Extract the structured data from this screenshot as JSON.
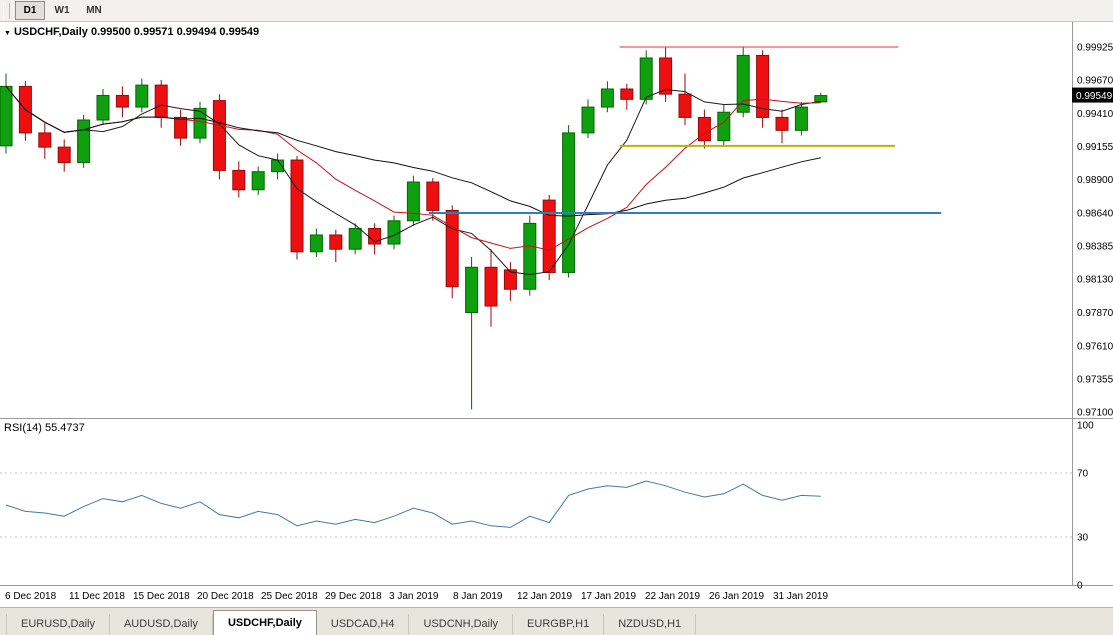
{
  "toolbar": {
    "buttons": [
      {
        "label": "D1",
        "active": true
      },
      {
        "label": "W1",
        "active": false
      },
      {
        "label": "MN",
        "active": false
      }
    ]
  },
  "chart": {
    "title": "USDCHF,Daily 0.99500 0.99571 0.99494 0.99549",
    "symbol": "USDCHF",
    "period": "Daily",
    "current_price": "0.99549",
    "price_axis_labels": [
      "0.99925",
      "0.99670",
      "0.99410",
      "0.99155",
      "0.98900",
      "0.98640",
      "0.98385",
      "0.98130",
      "0.97870",
      "0.97610",
      "0.97355",
      "0.97100"
    ],
    "date_labels": [
      "6 Dec 2018",
      "11 Dec 2018",
      "15 Dec 2018",
      "20 Dec 2018",
      "25 Dec 2018",
      "29 Dec 2018",
      "3 Jan 2019",
      "8 Jan 2019",
      "12 Jan 2019",
      "17 Jan 2019",
      "22 Jan 2019",
      "26 Jan 2019",
      "31 Jan 2019"
    ]
  },
  "rsi": {
    "label": "RSI(14) 55.4737",
    "level_labels": [
      "100",
      "70",
      "30",
      "0"
    ]
  },
  "tabs": [
    {
      "label": "EURUSD,Daily",
      "active": false
    },
    {
      "label": "AUDUSD,Daily",
      "active": false
    },
    {
      "label": "USDCHF,Daily",
      "active": true
    },
    {
      "label": "USDCAD,H4",
      "active": false
    },
    {
      "label": "USDCNH,Daily",
      "active": false
    },
    {
      "label": "EURGBP,H1",
      "active": false
    },
    {
      "label": "NZDUSD,H1",
      "active": false
    }
  ],
  "chart_data": {
    "type": "candlestick",
    "title": "USDCHF Daily",
    "price_range": [
      0.9705,
      1.0012
    ],
    "colors": {
      "up_fill": "#0fa00f",
      "up_stroke": "#056505",
      "down_fill": "#ee1010",
      "down_stroke": "#990808",
      "rsi_line": "#4279a8",
      "axis_line": "#9a9a9a"
    },
    "ohlc": [
      {
        "t": "2018.12.06",
        "o": 0.9916,
        "h": 0.9972,
        "l": 0.991,
        "c": 0.9962
      },
      {
        "t": "2018.12.07",
        "o": 0.9962,
        "h": 0.9966,
        "l": 0.992,
        "c": 0.9926
      },
      {
        "t": "2018.12.10",
        "o": 0.9926,
        "h": 0.9934,
        "l": 0.9906,
        "c": 0.9915
      },
      {
        "t": "2018.12.11",
        "o": 0.9915,
        "h": 0.9921,
        "l": 0.9896,
        "c": 0.9903
      },
      {
        "t": "2018.12.12",
        "o": 0.9903,
        "h": 0.994,
        "l": 0.9899,
        "c": 0.9936
      },
      {
        "t": "2018.12.13",
        "o": 0.9936,
        "h": 0.996,
        "l": 0.9932,
        "c": 0.9955
      },
      {
        "t": "2018.12.14",
        "o": 0.9955,
        "h": 0.9962,
        "l": 0.9938,
        "c": 0.9946
      },
      {
        "t": "2018.12.17",
        "o": 0.9946,
        "h": 0.9968,
        "l": 0.9942,
        "c": 0.9963
      },
      {
        "t": "2018.12.18",
        "o": 0.9963,
        "h": 0.9967,
        "l": 0.993,
        "c": 0.9938
      },
      {
        "t": "2018.12.19",
        "o": 0.9938,
        "h": 0.9944,
        "l": 0.9916,
        "c": 0.9922
      },
      {
        "t": "2018.12.20",
        "o": 0.9922,
        "h": 0.995,
        "l": 0.9918,
        "c": 0.9945
      },
      {
        "t": "2018.12.21",
        "o": 0.9951,
        "h": 0.9956,
        "l": 0.989,
        "c": 0.9897
      },
      {
        "t": "2018.12.24",
        "o": 0.9897,
        "h": 0.9904,
        "l": 0.9876,
        "c": 0.9882
      },
      {
        "t": "2018.12.25",
        "o": 0.9882,
        "h": 0.99,
        "l": 0.9878,
        "c": 0.9896
      },
      {
        "t": "2018.12.26",
        "o": 0.9896,
        "h": 0.991,
        "l": 0.989,
        "c": 0.9905
      },
      {
        "t": "2018.12.27",
        "o": 0.9905,
        "h": 0.9908,
        "l": 0.9828,
        "c": 0.9834
      },
      {
        "t": "2018.12.28",
        "o": 0.9834,
        "h": 0.9852,
        "l": 0.983,
        "c": 0.9847
      },
      {
        "t": "2018.12.31",
        "o": 0.9847,
        "h": 0.9851,
        "l": 0.9826,
        "c": 0.9836
      },
      {
        "t": "2019.01.01",
        "o": 0.9836,
        "h": 0.9856,
        "l": 0.9832,
        "c": 0.9852
      },
      {
        "t": "2019.01.02",
        "o": 0.9852,
        "h": 0.9856,
        "l": 0.9832,
        "c": 0.984
      },
      {
        "t": "2019.01.03",
        "o": 0.984,
        "h": 0.9862,
        "l": 0.9836,
        "c": 0.9858
      },
      {
        "t": "2019.01.04",
        "o": 0.9858,
        "h": 0.9893,
        "l": 0.9854,
        "c": 0.9888
      },
      {
        "t": "2019.01.07",
        "o": 0.9888,
        "h": 0.9891,
        "l": 0.9858,
        "c": 0.9866
      },
      {
        "t": "2019.01.08",
        "o": 0.9866,
        "h": 0.987,
        "l": 0.9798,
        "c": 0.9807
      },
      {
        "t": "2019.01.09",
        "o": 0.9787,
        "h": 0.983,
        "l": 0.9712,
        "c": 0.9822
      },
      {
        "t": "2019.01.10",
        "o": 0.9822,
        "h": 0.9836,
        "l": 0.9776,
        "c": 0.9792
      },
      {
        "t": "2019.01.11",
        "o": 0.982,
        "h": 0.9826,
        "l": 0.9796,
        "c": 0.9805
      },
      {
        "t": "2019.01.14",
        "o": 0.9805,
        "h": 0.9862,
        "l": 0.98,
        "c": 0.9856
      },
      {
        "t": "2019.01.15",
        "o": 0.9874,
        "h": 0.9878,
        "l": 0.9812,
        "c": 0.9818
      },
      {
        "t": "2019.01.16",
        "o": 0.9818,
        "h": 0.9932,
        "l": 0.9814,
        "c": 0.9926
      },
      {
        "t": "2019.01.17",
        "o": 0.9926,
        "h": 0.9952,
        "l": 0.9922,
        "c": 0.9946
      },
      {
        "t": "2019.01.18",
        "o": 0.9946,
        "h": 0.9966,
        "l": 0.9942,
        "c": 0.996
      },
      {
        "t": "2019.01.21",
        "o": 0.996,
        "h": 0.9964,
        "l": 0.9944,
        "c": 0.9952
      },
      {
        "t": "2019.01.22",
        "o": 0.9952,
        "h": 0.999,
        "l": 0.9948,
        "c": 0.9984
      },
      {
        "t": "2019.01.23",
        "o": 0.9984,
        "h": 0.9992,
        "l": 0.995,
        "c": 0.9956
      },
      {
        "t": "2019.01.24",
        "o": 0.9956,
        "h": 0.9972,
        "l": 0.9932,
        "c": 0.9938
      },
      {
        "t": "2019.01.25",
        "o": 0.9938,
        "h": 0.9944,
        "l": 0.9914,
        "c": 0.992
      },
      {
        "t": "2019.01.28",
        "o": 0.992,
        "h": 0.9948,
        "l": 0.9916,
        "c": 0.9942
      },
      {
        "t": "2019.01.29",
        "o": 0.9942,
        "h": 0.99925,
        "l": 0.9938,
        "c": 0.9986
      },
      {
        "t": "2019.01.30",
        "o": 0.9986,
        "h": 0.999,
        "l": 0.993,
        "c": 0.9938
      },
      {
        "t": "2019.01.31",
        "o": 0.9938,
        "h": 0.9944,
        "l": 0.9918,
        "c": 0.9928
      },
      {
        "t": "2019.02.01",
        "o": 0.9928,
        "h": 0.995,
        "l": 0.9924,
        "c": 0.9946
      },
      {
        "t": "2019.02.04",
        "o": 0.995,
        "h": 0.99571,
        "l": 0.99494,
        "c": 0.99549
      }
    ],
    "moving_averages": [
      {
        "period": 5,
        "color": "#1a1a1a"
      },
      {
        "period": 10,
        "color": "#cc1111"
      },
      {
        "period": 21,
        "color": "#111111"
      }
    ],
    "hlines": [
      {
        "name": "resistance-red",
        "price": 0.99925,
        "color": "#ff2626",
        "width": 1,
        "x_start": 0.578,
        "x_end": 0.838
      },
      {
        "name": "support-yellow",
        "price": 0.9916,
        "color": "#b5b500",
        "width": 2,
        "x_start": 0.578,
        "x_end": 0.835
      },
      {
        "name": "support-blue",
        "price": 0.9864,
        "color": "#2f80ba",
        "width": 2,
        "x_start": 0.4,
        "x_end": 0.878
      }
    ],
    "current_price": 0.99549,
    "rsi": {
      "period": 14,
      "last": 55.4737,
      "levels": [
        70,
        30
      ],
      "values": [
        50,
        46,
        45,
        43,
        49,
        54,
        52,
        56,
        51,
        48,
        52,
        44,
        42,
        46,
        44,
        37,
        40,
        38,
        41,
        39,
        43,
        48,
        45,
        38,
        40,
        37,
        36,
        43,
        39,
        56,
        60,
        62,
        61,
        65,
        62,
        58,
        55,
        57,
        63,
        56,
        53,
        56,
        55.47
      ]
    }
  }
}
